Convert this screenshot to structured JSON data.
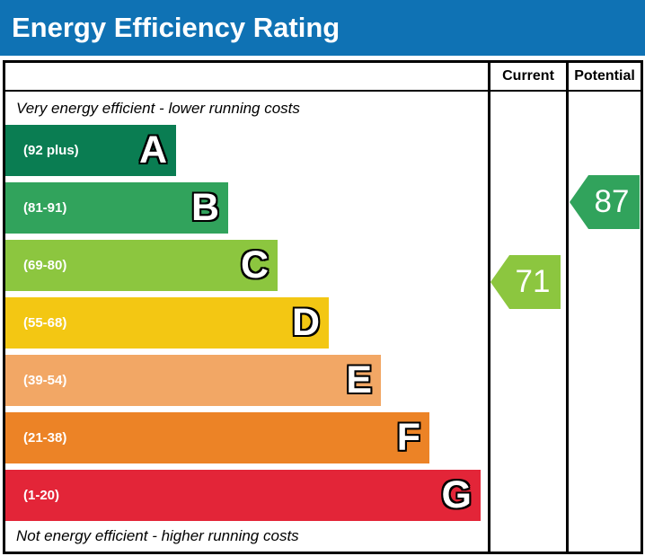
{
  "title": "Energy Efficiency Rating",
  "colors": {
    "title_bg": "#0f72b4",
    "title_text": "#ffffff",
    "border": "#000000"
  },
  "chart_data": {
    "type": "bar",
    "title": "Energy Efficiency Rating",
    "top_note": "Very energy efficient - lower running costs",
    "bottom_note": "Not energy efficient - higher running costs",
    "columns": {
      "current_label": "Current",
      "potential_label": "Potential"
    },
    "bands": [
      {
        "letter": "A",
        "range": "(92 plus)",
        "min": 92,
        "max": 100,
        "color": "#0a7d52"
      },
      {
        "letter": "B",
        "range": "(81-91)",
        "min": 81,
        "max": 91,
        "color": "#31a35c"
      },
      {
        "letter": "C",
        "range": "(69-80)",
        "min": 69,
        "max": 80,
        "color": "#8cc63f"
      },
      {
        "letter": "D",
        "range": "(55-68)",
        "min": 55,
        "max": 68,
        "color": "#f3c713"
      },
      {
        "letter": "E",
        "range": "(39-54)",
        "min": 39,
        "max": 54,
        "color": "#f2a765"
      },
      {
        "letter": "F",
        "range": "(21-38)",
        "min": 21,
        "max": 38,
        "color": "#ec8326"
      },
      {
        "letter": "G",
        "range": "(1-20)",
        "min": 1,
        "max": 20,
        "color": "#e32538"
      }
    ],
    "current": {
      "value": 71,
      "band": "C",
      "color": "#8cc63f"
    },
    "potential": {
      "value": 87,
      "band": "B",
      "color": "#31a35c"
    }
  }
}
